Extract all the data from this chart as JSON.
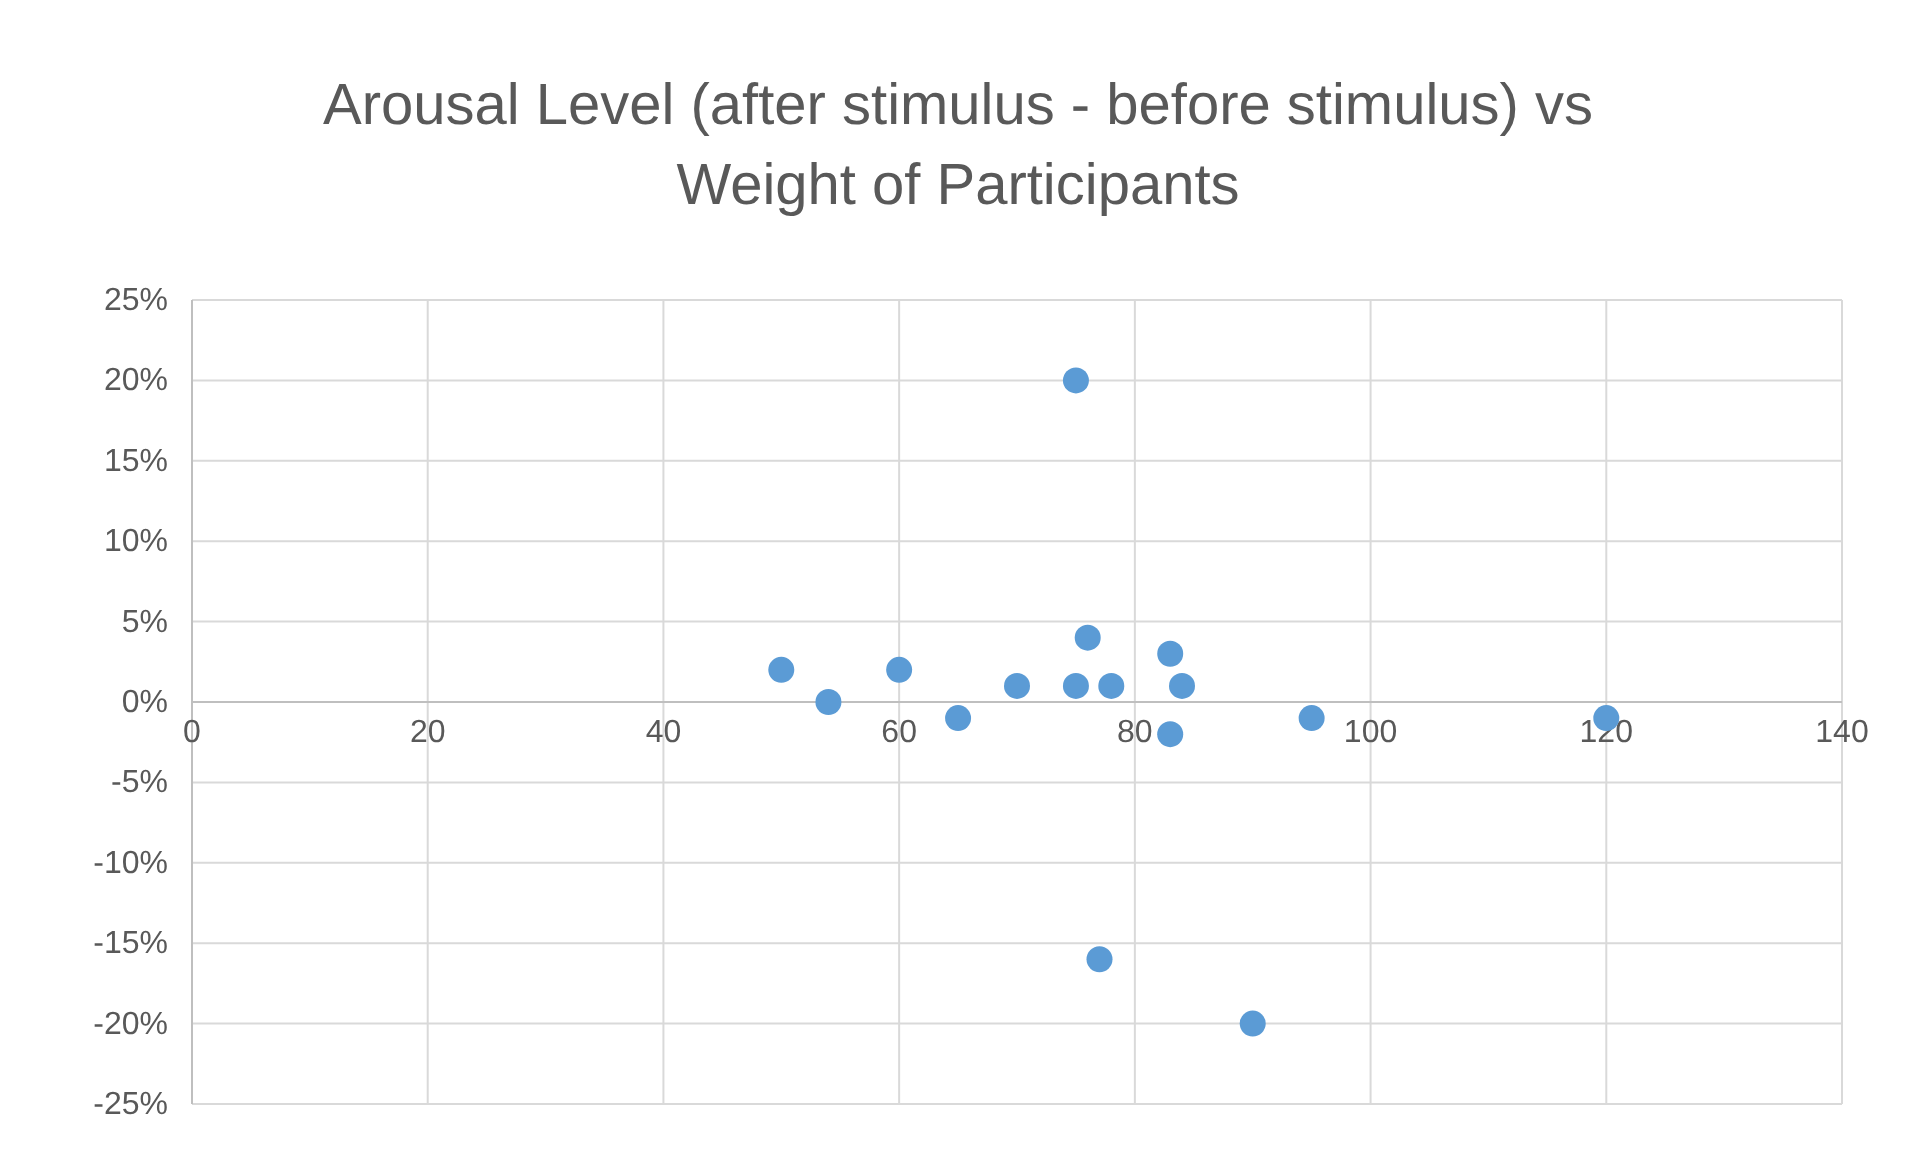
{
  "chart_data": {
    "type": "scatter",
    "title": "Arousal Level (after stimulus - before stimulus) vs Weight of Participants",
    "x": [
      50,
      54,
      60,
      65,
      70,
      75,
      75,
      76,
      78,
      77,
      83,
      83,
      84,
      90,
      95,
      120
    ],
    "series": [
      {
        "color": "#5b9bd5",
        "values": [
          2,
          0,
          2,
          -1,
          1,
          1,
          20,
          4,
          1,
          -16,
          3,
          -2,
          1,
          -20,
          -1,
          -1
        ]
      }
    ],
    "xlim": [
      0,
      140
    ],
    "xticks": [
      0,
      20,
      40,
      60,
      80,
      100,
      120,
      140
    ],
    "ylim": [
      -25,
      25
    ],
    "yticks": [
      {
        "value": -25,
        "label": "-25%"
      },
      {
        "value": -20,
        "label": "-20%"
      },
      {
        "value": -15,
        "label": "-15%"
      },
      {
        "value": -10,
        "label": "-10%"
      },
      {
        "value": -5,
        "label": "-5%"
      },
      {
        "value": 0,
        "label": "0%"
      },
      {
        "value": 5,
        "label": "5%"
      },
      {
        "value": 10,
        "label": "10%"
      },
      {
        "value": 15,
        "label": "15%"
      },
      {
        "value": 20,
        "label": "20%"
      },
      {
        "value": 25,
        "label": "25%"
      }
    ],
    "grid": true,
    "marker": "circle"
  }
}
